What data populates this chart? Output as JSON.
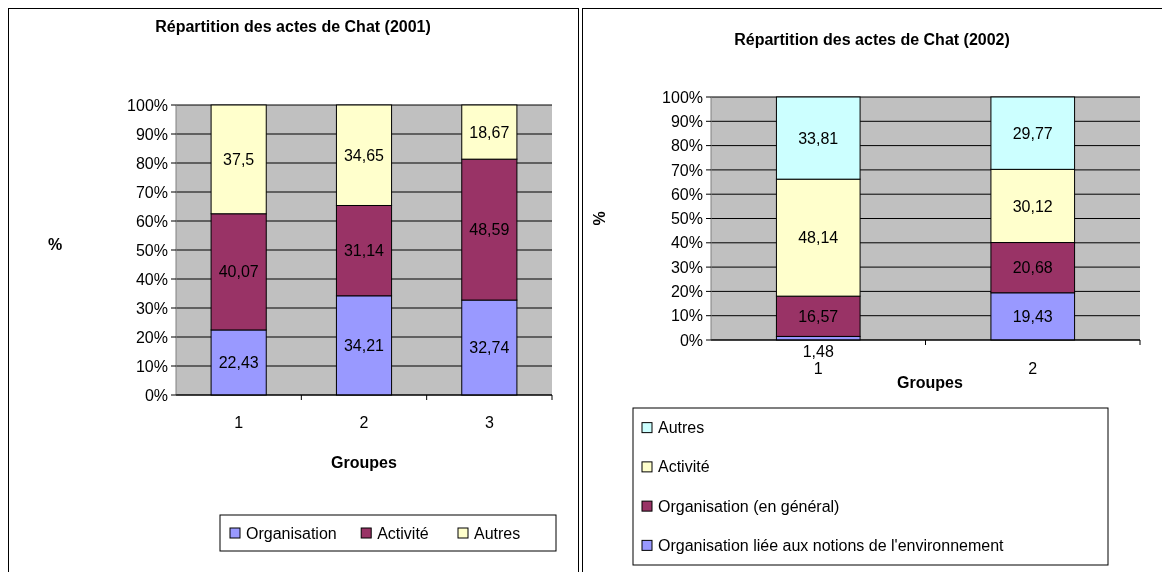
{
  "chart_data": [
    {
      "type": "bar",
      "title": "Répartition des actes de Chat (2001)",
      "xlabel": "Groupes",
      "ylabel": "%",
      "categories": [
        "1",
        "2",
        "3"
      ],
      "stacked": true,
      "ylim": [
        0,
        100
      ],
      "yticks": [
        {
          "value": 0,
          "label": "0%"
        },
        {
          "value": 10,
          "label": "10%"
        },
        {
          "value": 20,
          "label": "20%"
        },
        {
          "value": 30,
          "label": "30%"
        },
        {
          "value": 40,
          "label": "40%"
        },
        {
          "value": 50,
          "label": "50%"
        },
        {
          "value": 60,
          "label": "60%"
        },
        {
          "value": 70,
          "label": "70%"
        },
        {
          "value": 80,
          "label": "80%"
        },
        {
          "value": 90,
          "label": "90%"
        },
        {
          "value": 100,
          "label": "100%"
        }
      ],
      "grid": "y",
      "legend": "bottom",
      "series": [
        {
          "name": "Organisation",
          "color": "#9999ff",
          "values": [
            22.43,
            34.21,
            32.74
          ],
          "value_labels": [
            "22,43",
            "34,21",
            "32,74"
          ]
        },
        {
          "name": "Activité",
          "color": "#993366",
          "values": [
            40.07,
            31.14,
            48.59
          ],
          "value_labels": [
            "40,07",
            "31,14",
            "48,59"
          ]
        },
        {
          "name": "Autres",
          "color": "#ffffcc",
          "values": [
            37.5,
            34.65,
            18.67
          ],
          "value_labels": [
            "37,5",
            "34,65",
            "18,67"
          ]
        }
      ]
    },
    {
      "type": "bar",
      "title": "Répartition des actes de Chat (2002)",
      "xlabel": "Groupes",
      "ylabel": "%",
      "categories": [
        "1",
        "2"
      ],
      "stacked": true,
      "ylim": [
        0,
        100
      ],
      "yticks": [
        {
          "value": 0,
          "label": "0%"
        },
        {
          "value": 10,
          "label": "10%"
        },
        {
          "value": 20,
          "label": "20%"
        },
        {
          "value": 30,
          "label": "30%"
        },
        {
          "value": 40,
          "label": "40%"
        },
        {
          "value": 50,
          "label": "50%"
        },
        {
          "value": 60,
          "label": "60%"
        },
        {
          "value": 70,
          "label": "70%"
        },
        {
          "value": 80,
          "label": "80%"
        },
        {
          "value": 90,
          "label": "90%"
        },
        {
          "value": 100,
          "label": "100%"
        }
      ],
      "grid": "y",
      "legend": "bottom",
      "series": [
        {
          "name": "Organisation liée aux notions de l'environnement",
          "color": "#9999ff",
          "values": [
            1.48,
            19.43
          ],
          "value_labels": [
            "1,48",
            "19,43"
          ]
        },
        {
          "name": "Organisation (en général)",
          "color": "#993366",
          "values": [
            16.57,
            20.68
          ],
          "value_labels": [
            "16,57",
            "20,68"
          ]
        },
        {
          "name": "Activité",
          "color": "#ffffcc",
          "values": [
            48.14,
            30.12
          ],
          "value_labels": [
            "48,14",
            "30,12"
          ]
        },
        {
          "name": "Autres",
          "color": "#ccffff",
          "values": [
            33.81,
            29.77
          ],
          "value_labels": [
            "33,81",
            "29,77"
          ]
        }
      ]
    }
  ]
}
